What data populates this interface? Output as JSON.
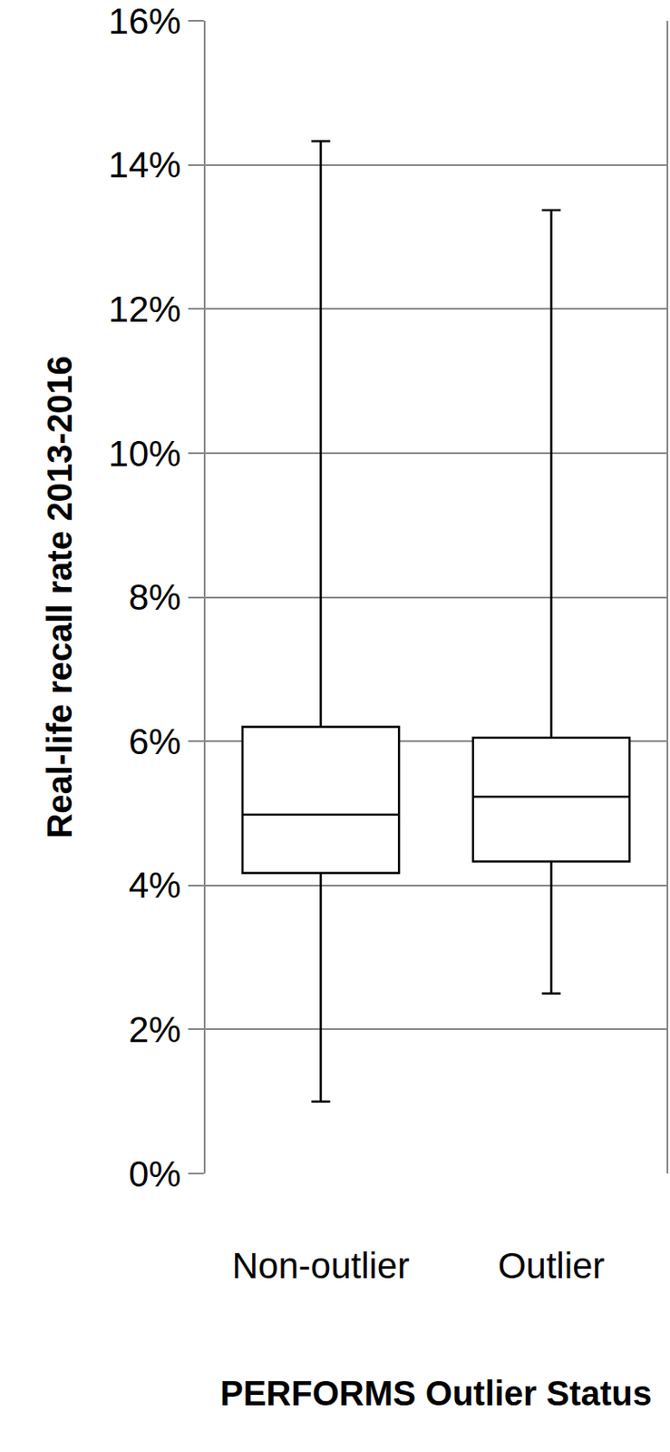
{
  "chart_data": {
    "type": "box",
    "categories": [
      "Non-outlier",
      "Outlier"
    ],
    "min": [
      1.0,
      2.5
    ],
    "q1": [
      4.17,
      4.33
    ],
    "median": [
      4.98,
      5.23
    ],
    "q3": [
      6.2,
      6.05
    ],
    "max": [
      14.33,
      13.37
    ],
    "color": "#000000",
    "ylabel": "Real-life recall rate 2013-2016",
    "xlabel": "PERFORMS Outlier Status",
    "ylim": [
      0,
      16
    ],
    "yticks": [
      {
        "value": 0,
        "label": "0%"
      },
      {
        "value": 2,
        "label": "2%"
      },
      {
        "value": 4,
        "label": "4%"
      },
      {
        "value": 6,
        "label": "6%"
      },
      {
        "value": 8,
        "label": "8%"
      },
      {
        "value": 10,
        "label": "10%"
      },
      {
        "value": 12,
        "label": "12%"
      },
      {
        "value": 14,
        "label": "14%"
      },
      {
        "value": 16,
        "label": "16%"
      }
    ],
    "grid": true
  }
}
